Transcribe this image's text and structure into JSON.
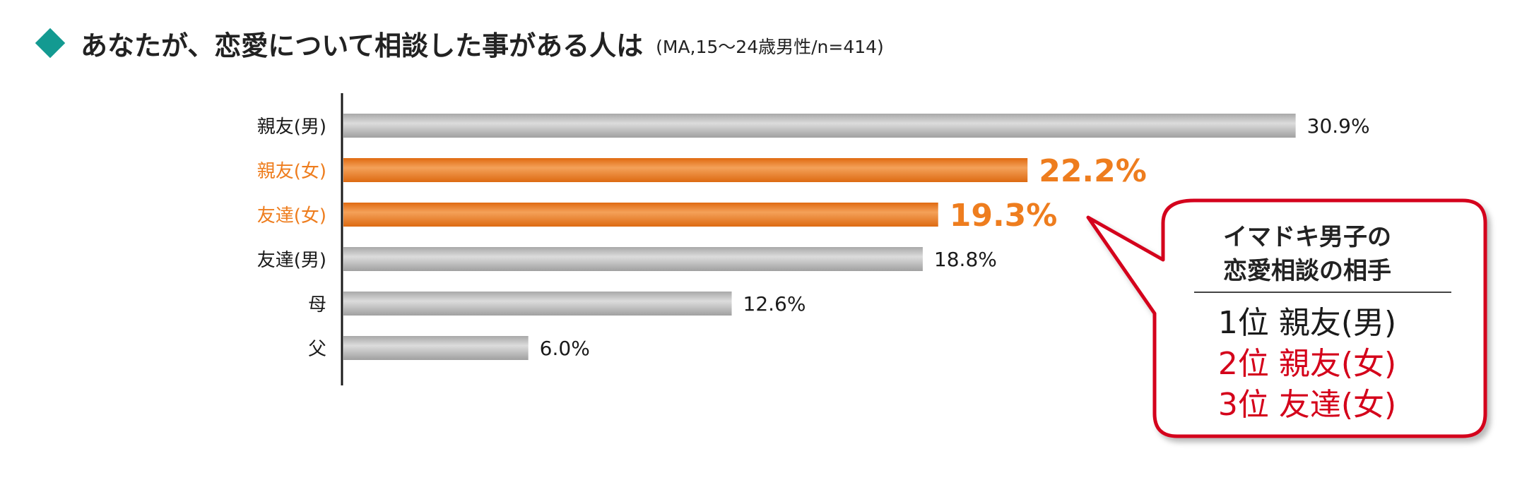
{
  "title": {
    "main": "あなたが、恋愛について相談した事がある人は",
    "note": "(MA,15〜24歳男性/n=414)"
  },
  "colors": {
    "accent_diamond": "#139a91",
    "bar_gray": "#bdbdbd",
    "bar_orange": "#ee7d1e",
    "highlight_text": "#ee7d1e",
    "callout_border": "#d4001a",
    "callout_red_text": "#d4001a"
  },
  "chart_data": {
    "type": "bar",
    "orientation": "horizontal",
    "categories": [
      "親友(男)",
      "親友(女)",
      "友達(女)",
      "友達(男)",
      "母",
      "父"
    ],
    "values": [
      30.9,
      22.2,
      19.3,
      18.8,
      12.6,
      6.0
    ],
    "value_labels": [
      "30.9%",
      "22.2%",
      "19.3%",
      "18.8%",
      "12.6%",
      "6.0%"
    ],
    "highlighted": [
      false,
      true,
      true,
      false,
      false,
      false
    ],
    "xlim": [
      0,
      31
    ],
    "grid": false,
    "legend": "none"
  },
  "callout": {
    "heading_line1": "イマドキ男子の",
    "heading_line2": "恋愛相談の相手",
    "rank1": "1位 親友(男)",
    "rank2": "2位 親友(女)",
    "rank3": "3位 友達(女)"
  }
}
